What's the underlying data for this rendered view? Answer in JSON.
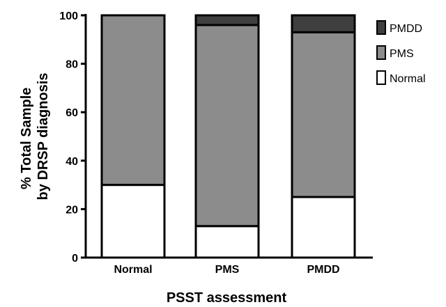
{
  "chart_data": {
    "type": "bar",
    "stacked": true,
    "categories": [
      "Normal",
      "PMS",
      "PMDD"
    ],
    "series": [
      {
        "name": "Normal",
        "values": [
          30,
          13,
          25
        ],
        "color": "#ffffff"
      },
      {
        "name": "PMS",
        "values": [
          70,
          83,
          68
        ],
        "color": "#8c8c8c"
      },
      {
        "name": "PMDD",
        "values": [
          0,
          4,
          7
        ],
        "color": "#3f3f3f"
      }
    ],
    "title": "",
    "xlabel": "PSST assessment",
    "ylabel_lines": [
      "% Total Sample",
      "by DRSP diagnosis"
    ],
    "ylim": [
      0,
      100
    ],
    "yticks": [
      "0",
      "20",
      "40",
      "60",
      "80",
      "100"
    ],
    "legend": {
      "placement": "top-right",
      "entries": [
        "PMDD",
        "PMS",
        "Normal"
      ]
    },
    "grid": false
  }
}
